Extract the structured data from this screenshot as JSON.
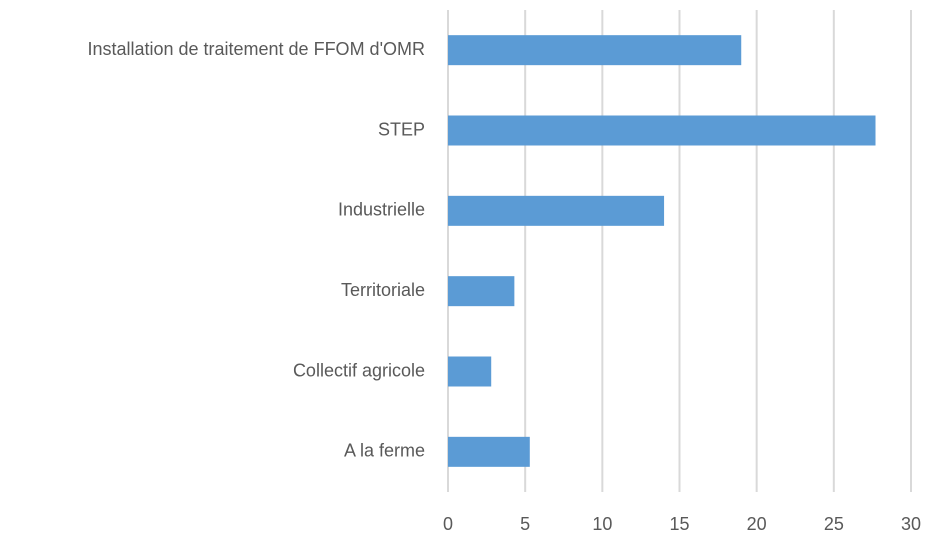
{
  "chart_data": {
    "type": "bar",
    "orientation": "horizontal",
    "categories": [
      "Installation de traitement de FFOM d'OMR",
      "STEP",
      "Industrielle",
      "Territoriale",
      "Collectif agricole",
      "A la ferme"
    ],
    "values": [
      19.0,
      27.7,
      14.0,
      4.3,
      2.8,
      5.3
    ],
    "color": "#5b9bd5",
    "xlim": [
      0,
      30
    ],
    "xticks": [
      0,
      5,
      10,
      15,
      20,
      25,
      30
    ],
    "grid": true
  }
}
